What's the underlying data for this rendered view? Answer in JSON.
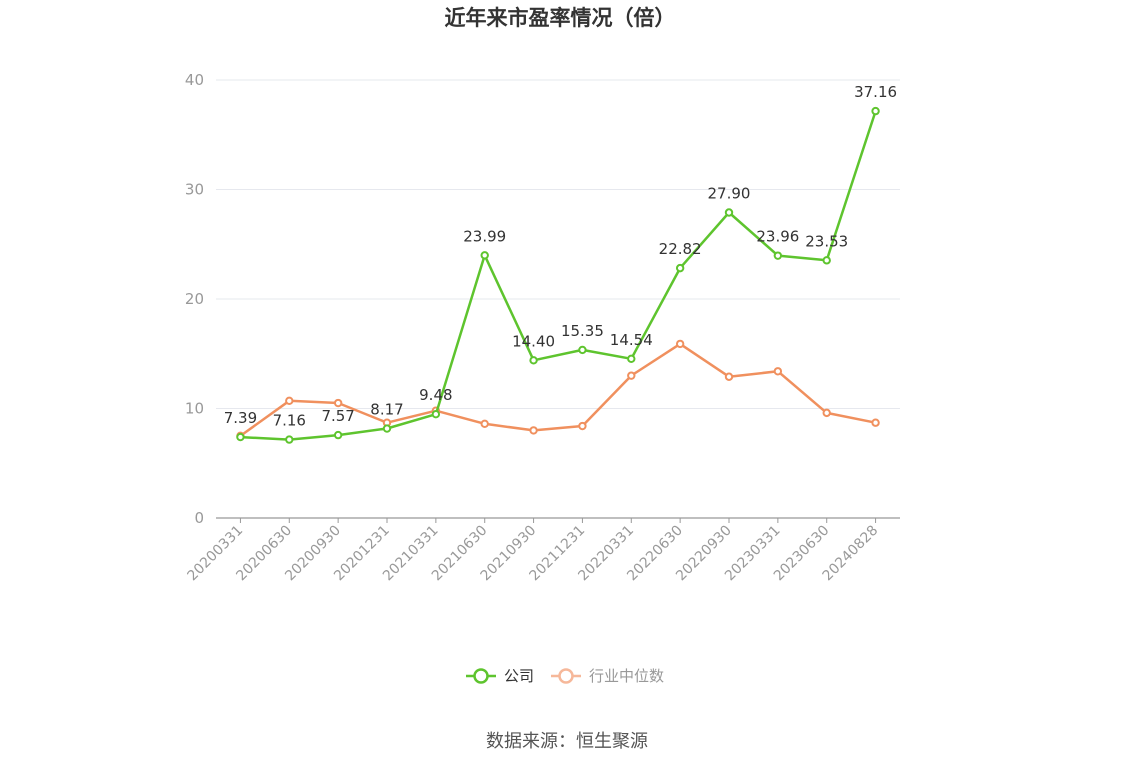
{
  "chart_data": {
    "type": "line",
    "title": "近年来市盈率情况（倍）",
    "categories": [
      "20200331",
      "20200630",
      "20200930",
      "20201231",
      "20210331",
      "20210630",
      "20210930",
      "20211231",
      "20220331",
      "20220630",
      "20220930",
      "20230331",
      "20230630",
      "20240828"
    ],
    "series": [
      {
        "name": "公司",
        "color": "#5ec42e",
        "values": [
          7.39,
          7.16,
          7.57,
          8.17,
          9.48,
          23.99,
          14.4,
          15.35,
          14.54,
          22.82,
          27.9,
          23.96,
          23.53,
          37.16
        ],
        "labels": [
          "7.39",
          "7.16",
          "7.57",
          "8.17",
          "9.48",
          "23.99",
          "14.40",
          "15.35",
          "14.54",
          "22.82",
          "27.90",
          "23.96",
          "23.53",
          "37.16"
        ]
      },
      {
        "name": "行业中位数",
        "color": "#f0905e",
        "legend_color": "#f6b89a",
        "values": [
          7.5,
          10.7,
          10.5,
          8.7,
          9.8,
          8.6,
          8.0,
          8.4,
          13.0,
          15.9,
          12.9,
          13.4,
          9.6,
          8.7
        ]
      }
    ],
    "ylim": [
      0,
      40
    ],
    "yticks": [
      0,
      10,
      20,
      30,
      40
    ],
    "grid": true,
    "legend_position": "bottom-center"
  },
  "source": "数据来源：恒生聚源"
}
